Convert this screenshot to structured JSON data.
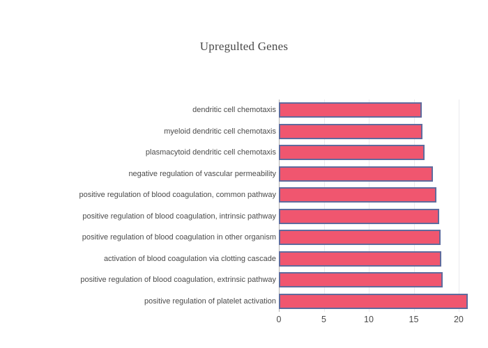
{
  "chart_data": {
    "type": "bar",
    "orientation": "horizontal",
    "title": "Upregulted Genes",
    "categories": [
      "dendritic cell chemotaxis",
      "myeloid dendritic cell chemotaxis",
      "plasmacytoid dendritic cell chemotaxis",
      "negative regulation of vascular permeability",
      "positive regulation of blood coagulation, common pathway",
      "positive regulation of blood coagulation, intrinsic pathway",
      "positive regulation of blood coagulation in other organism",
      "activation of blood coagulation via clotting cascade",
      "positive regulation of blood coagulation, extrinsic pathway",
      "positive regulation of platelet activation"
    ],
    "values": [
      15.9,
      16.0,
      16.2,
      17.1,
      17.5,
      17.8,
      18.0,
      18.1,
      18.2,
      21.0
    ],
    "xlabel": "",
    "ylabel": "",
    "xlim": [
      0,
      21.4
    ],
    "xticks": [
      0,
      5,
      10,
      15,
      20
    ],
    "grid": true,
    "legend": "none",
    "colors": {
      "bar_fill": "#f0566f",
      "bar_border": "#5f6b9d",
      "gridline": "#eaeaee",
      "zeroline": "#b0b0b0",
      "tick_text": "#4a4a4a",
      "title_text": "#484848",
      "background": "#ffffff"
    }
  }
}
